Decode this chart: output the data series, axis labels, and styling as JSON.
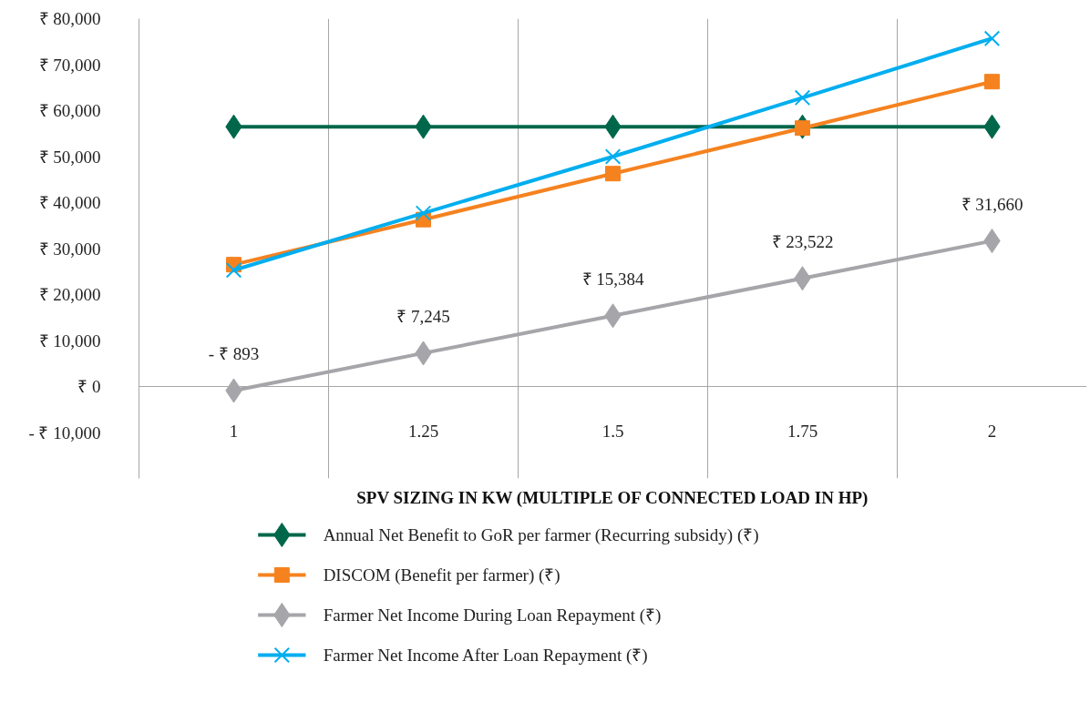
{
  "chart_data": {
    "type": "line",
    "xlabel": "SPV SIZING IN KW (MULTIPLE OF CONNECTED LOAD IN HP)",
    "categories": [
      "1",
      "1.25",
      "1.5",
      "1.75",
      "2"
    ],
    "series": [
      {
        "name": "Annual Net Benefit to GoR per farmer (Recurring subsidy) (₹)",
        "color": "#00674b",
        "marker": "diamond",
        "values": [
          56500,
          56500,
          56500,
          56500,
          56500
        ]
      },
      {
        "name": "DISCOM (Benefit per farmer) (₹)",
        "color": "#f5821f",
        "marker": "square",
        "values": [
          26500,
          36300,
          46300,
          56200,
          66300
        ]
      },
      {
        "name": "Farmer Net Income During Loan Repayment (₹)",
        "color": "#a5a5aa",
        "marker": "diamond",
        "values": [
          -893,
          7245,
          15384,
          23522,
          31660
        ],
        "value_labels": [
          "- ₹ 893",
          "₹ 7,245",
          "₹ 15,384",
          "₹ 23,522",
          "₹ 31,660"
        ]
      },
      {
        "name": "Farmer Net Income After Loan Repayment (₹)",
        "color": "#00aeef",
        "marker": "cross",
        "values": [
          25300,
          37700,
          50000,
          62800,
          75700
        ]
      }
    ],
    "ylim": [
      -20000,
      80000
    ],
    "yticks": [
      {
        "value": -10000,
        "label": "- ₹ 10,000"
      },
      {
        "value": 0,
        "label": "₹ 0"
      },
      {
        "value": 10000,
        "label": "₹ 10,000"
      },
      {
        "value": 20000,
        "label": "₹ 20,000"
      },
      {
        "value": 30000,
        "label": "₹ 30,000"
      },
      {
        "value": 40000,
        "label": "₹ 40,000"
      },
      {
        "value": 50000,
        "label": "₹ 50,000"
      },
      {
        "value": 60000,
        "label": "₹ 60,000"
      },
      {
        "value": 70000,
        "label": "₹ 70,000"
      },
      {
        "value": 80000,
        "label": "₹ 80,000"
      }
    ],
    "grid": "x",
    "legend": "bottom",
    "line_style": "solid"
  }
}
